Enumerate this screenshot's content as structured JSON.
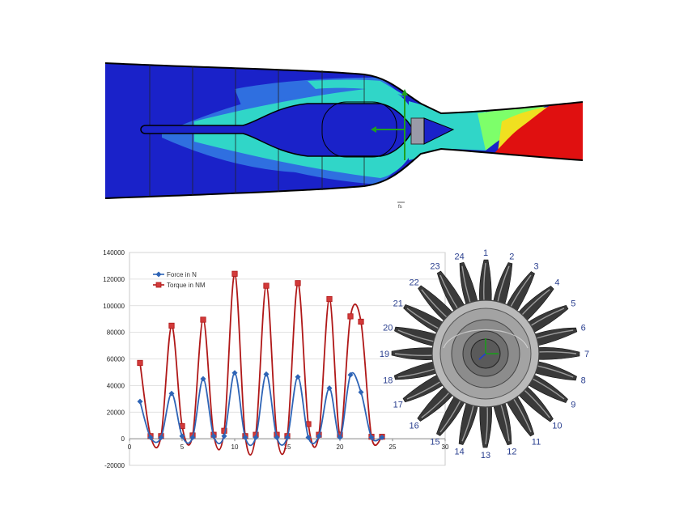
{
  "figure": {
    "flow_marker_label": "fs"
  },
  "colors": {
    "flow_dark_blue": "#1a22c9",
    "flow_mid_blue": "#2f6fe0",
    "flow_cyan": "#30d6c8",
    "flow_green": "#7dff6a",
    "flow_yellow": "#f0e020",
    "flow_red": "#e01010",
    "series_force": "#2e64b6",
    "series_torque": "#b01818",
    "blade": "#3a3a3a",
    "blade_label": "#2a3f8f"
  },
  "chart_data": {
    "type": "line",
    "title": "",
    "xlabel": "",
    "ylabel": "",
    "xlim": [
      0,
      30
    ],
    "ylim": [
      -20000,
      140000
    ],
    "x_ticks": [
      "0",
      "5",
      "10",
      "15",
      "20",
      "25",
      "30"
    ],
    "y_ticks": [
      "-20000",
      "0",
      "20000",
      "40000",
      "60000",
      "80000",
      "100000",
      "120000",
      "140000"
    ],
    "grid": "horizontal",
    "legend": "top-left",
    "series": [
      {
        "name": "Force in N",
        "marker": "diamond",
        "x": [
          1,
          2,
          3,
          4,
          5,
          6,
          7,
          8,
          9,
          10,
          11,
          12,
          13,
          14,
          15,
          16,
          17,
          18,
          19,
          20,
          21,
          22,
          23,
          24
        ],
        "y": [
          28000,
          1000,
          1000,
          34000,
          2000,
          1000,
          45000,
          2000,
          2000,
          49500,
          1000,
          1000,
          48500,
          1000,
          1000,
          46500,
          1000,
          2000,
          38000,
          1000,
          48000,
          35000,
          1000,
          1000
        ]
      },
      {
        "name": "Torque in NM",
        "marker": "square",
        "x": [
          1,
          2,
          3,
          4,
          5,
          6,
          7,
          8,
          9,
          10,
          11,
          12,
          13,
          14,
          15,
          16,
          17,
          18,
          19,
          20,
          21,
          22,
          23,
          24
        ],
        "y": [
          57000,
          2000,
          2000,
          85000,
          9500,
          2500,
          89500,
          3000,
          6000,
          124000,
          2000,
          3000,
          115000,
          3000,
          2000,
          117000,
          11000,
          3000,
          105000,
          3000,
          92000,
          88000,
          1500,
          1500
        ]
      }
    ]
  },
  "rotor": {
    "blade_numbers": [
      "1",
      "2",
      "3",
      "4",
      "5",
      "6",
      "7",
      "8",
      "9",
      "10",
      "11",
      "12",
      "13",
      "14",
      "15",
      "16",
      "17",
      "18",
      "19",
      "20",
      "21",
      "22",
      "23",
      "24"
    ]
  }
}
